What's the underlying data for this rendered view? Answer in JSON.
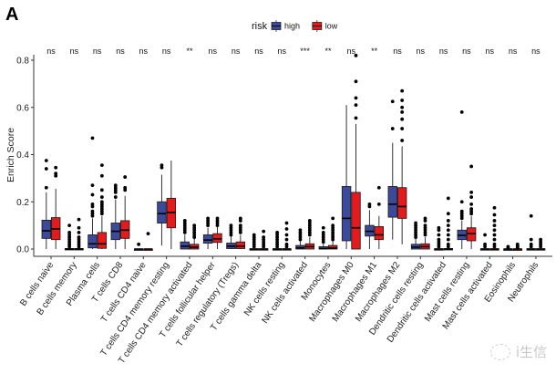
{
  "panel_label": "A",
  "watermark": "i生信",
  "chart_data": {
    "type": "boxplot",
    "title": "",
    "xlabel": "",
    "ylabel": "Enrich Score",
    "ylim": [
      -0.03,
      0.86
    ],
    "yticks": [
      0.0,
      0.2,
      0.4,
      0.6,
      0.8
    ],
    "ytick_labels": [
      "0.0",
      "0.2",
      "0.4",
      "0.6",
      "0.8"
    ],
    "grid": false,
    "legend": {
      "title": "risk",
      "placement": "top-center",
      "entries": [
        {
          "name": "high",
          "color": "#3B4A9A"
        },
        {
          "name": "low",
          "color": "#E41A1C"
        }
      ]
    },
    "categories": [
      "B cells naive",
      "B cells memory",
      "Plasma cells",
      "T cells CD8",
      "T cells CD4 naive",
      "T cells CD4 memory resting",
      "T cells CD4 memory activated",
      "T cells follicular helper",
      "T cells regulatory (Tregs)",
      "T cells gamma delta",
      "NK cells resting",
      "NK cells activated",
      "Monocytes",
      "Macrophages M0",
      "Macrophages M1",
      "Macrophages M2",
      "Dendritic cells resting",
      "Dendritic cells activated",
      "Mast cells resting",
      "Mast cells activated",
      "Eosinophils",
      "Neutrophils"
    ],
    "significance": [
      "ns",
      "ns",
      "ns",
      "ns",
      "ns",
      "ns",
      "**",
      "ns",
      "ns",
      "ns",
      "ns",
      "***",
      "**",
      "ns",
      "**",
      "ns",
      "ns",
      "ns",
      "ns",
      "ns",
      "ns",
      "ns"
    ],
    "series": [
      {
        "name": "high",
        "boxes": [
          {
            "q1": 0.045,
            "median": 0.077,
            "q3": 0.122,
            "wlo": 0.0,
            "whi": 0.24,
            "outliers": [
              0.26,
              0.34,
              0.375
            ]
          },
          {
            "q1": 0.0,
            "median": 0.0,
            "q3": 0.002,
            "wlo": 0.0,
            "whi": 0.004,
            "outliers": [
              0.01,
              0.02,
              0.03,
              0.04,
              0.05,
              0.06,
              0.07,
              0.1
            ]
          },
          {
            "q1": 0.005,
            "median": 0.022,
            "q3": 0.06,
            "wlo": 0.0,
            "whi": 0.13,
            "outliers": [
              0.14,
              0.15,
              0.16,
              0.18,
              0.19,
              0.23,
              0.27,
              0.47
            ]
          },
          {
            "q1": 0.04,
            "median": 0.075,
            "q3": 0.11,
            "wlo": 0.0,
            "whi": 0.21,
            "outliers": [
              0.22,
              0.24,
              0.25,
              0.26,
              0.27
            ]
          },
          {
            "q1": 0.0,
            "median": 0.0,
            "q3": 0.0,
            "wlo": 0.0,
            "whi": 0.0,
            "outliers": [
              0.02
            ]
          },
          {
            "q1": 0.11,
            "median": 0.15,
            "q3": 0.2,
            "wlo": 0.015,
            "whi": 0.315,
            "outliers": [
              0.345,
              0.355
            ]
          },
          {
            "q1": 0.0,
            "median": 0.012,
            "q3": 0.03,
            "wlo": 0.0,
            "whi": 0.06,
            "outliers": [
              0.07,
              0.08,
              0.09,
              0.1,
              0.11,
              0.12
            ]
          },
          {
            "q1": 0.025,
            "median": 0.038,
            "q3": 0.06,
            "wlo": 0.0,
            "whi": 0.09,
            "outliers": [
              0.1,
              0.11,
              0.12,
              0.13
            ]
          },
          {
            "q1": 0.002,
            "median": 0.012,
            "q3": 0.025,
            "wlo": 0.0,
            "whi": 0.055,
            "outliers": [
              0.06,
              0.07,
              0.08,
              0.09,
              0.1
            ]
          },
          {
            "q1": 0.0,
            "median": 0.0,
            "q3": 0.001,
            "wlo": 0.0,
            "whi": 0.002,
            "outliers": [
              0.01,
              0.02,
              0.03,
              0.04,
              0.05,
              0.06
            ]
          },
          {
            "q1": 0.0,
            "median": 0.0,
            "q3": 0.001,
            "wlo": 0.0,
            "whi": 0.002,
            "outliers": [
              0.01,
              0.02,
              0.03,
              0.04,
              0.05,
              0.06,
              0.07
            ]
          },
          {
            "q1": 0.0,
            "median": 0.005,
            "q3": 0.015,
            "wlo": 0.0,
            "whi": 0.035,
            "outliers": [
              0.04,
              0.05,
              0.06,
              0.07,
              0.08
            ]
          },
          {
            "q1": 0.0,
            "median": 0.002,
            "q3": 0.01,
            "wlo": 0.0,
            "whi": 0.025,
            "outliers": [
              0.03,
              0.04,
              0.05,
              0.06,
              0.07,
              0.09
            ]
          },
          {
            "q1": 0.035,
            "median": 0.13,
            "q3": 0.265,
            "wlo": 0.0,
            "whi": 0.61,
            "outliers": []
          },
          {
            "q1": 0.055,
            "median": 0.075,
            "q3": 0.1,
            "wlo": 0.0,
            "whi": 0.165,
            "outliers": [
              0.18,
              0.19
            ]
          },
          {
            "q1": 0.135,
            "median": 0.19,
            "q3": 0.265,
            "wlo": 0.04,
            "whi": 0.45,
            "outliers": [
              0.51,
              0.625
            ]
          },
          {
            "q1": 0.0,
            "median": 0.008,
            "q3": 0.02,
            "wlo": 0.0,
            "whi": 0.045,
            "outliers": [
              0.05,
              0.06,
              0.07,
              0.08,
              0.09,
              0.1,
              0.11
            ]
          },
          {
            "q1": 0.0,
            "median": 0.0,
            "q3": 0.001,
            "wlo": 0.0,
            "whi": 0.002,
            "outliers": [
              0.01,
              0.02,
              0.03,
              0.04,
              0.06,
              0.08,
              0.09
            ]
          },
          {
            "q1": 0.04,
            "median": 0.058,
            "q3": 0.08,
            "wlo": 0.0,
            "whi": 0.12,
            "outliers": [
              0.13,
              0.14,
              0.15,
              0.16,
              0.2,
              0.58
            ]
          },
          {
            "q1": 0.0,
            "median": 0.0,
            "q3": 0.001,
            "wlo": 0.0,
            "whi": 0.002,
            "outliers": [
              0.01,
              0.02,
              0.06
            ]
          },
          {
            "q1": 0.0,
            "median": 0.0,
            "q3": 0.0,
            "wlo": 0.0,
            "whi": 0.001,
            "outliers": [
              0.005,
              0.01
            ]
          },
          {
            "q1": 0.0,
            "median": 0.0,
            "q3": 0.001,
            "wlo": 0.0,
            "whi": 0.002,
            "outliers": [
              0.01,
              0.02,
              0.04,
              0.14
            ]
          }
        ]
      },
      {
        "name": "low",
        "boxes": [
          {
            "q1": 0.04,
            "median": 0.085,
            "q3": 0.133,
            "wlo": 0.0,
            "whi": 0.255,
            "outliers": [
              0.31,
              0.32,
              0.345
            ]
          },
          {
            "q1": 0.0,
            "median": 0.0,
            "q3": 0.002,
            "wlo": 0.0,
            "whi": 0.004,
            "outliers": [
              0.01,
              0.02,
              0.03,
              0.04,
              0.05,
              0.07,
              0.09,
              0.125
            ]
          },
          {
            "q1": 0.003,
            "median": 0.022,
            "q3": 0.07,
            "wlo": 0.0,
            "whi": 0.14,
            "outliers": [
              0.15,
              0.16,
              0.17,
              0.18,
              0.19,
              0.2,
              0.22,
              0.25,
              0.31,
              0.355
            ]
          },
          {
            "q1": 0.045,
            "median": 0.08,
            "q3": 0.12,
            "wlo": 0.0,
            "whi": 0.225,
            "outliers": [
              0.25,
              0.26,
              0.305
            ]
          },
          {
            "q1": 0.0,
            "median": 0.0,
            "q3": 0.0,
            "wlo": 0.0,
            "whi": 0.0,
            "outliers": [
              0.065
            ]
          },
          {
            "q1": 0.09,
            "median": 0.155,
            "q3": 0.215,
            "wlo": 0.0,
            "whi": 0.375,
            "outliers": []
          },
          {
            "q1": 0.0,
            "median": 0.008,
            "q3": 0.02,
            "wlo": 0.0,
            "whi": 0.045,
            "outliers": [
              0.05,
              0.06,
              0.07,
              0.08,
              0.09,
              0.1
            ]
          },
          {
            "q1": 0.028,
            "median": 0.043,
            "q3": 0.065,
            "wlo": 0.0,
            "whi": 0.095,
            "outliers": [
              0.1,
              0.11,
              0.12,
              0.13
            ]
          },
          {
            "q1": 0.002,
            "median": 0.012,
            "q3": 0.03,
            "wlo": 0.0,
            "whi": 0.06,
            "outliers": [
              0.07,
              0.08,
              0.09,
              0.1,
              0.12,
              0.13
            ]
          },
          {
            "q1": 0.0,
            "median": 0.0,
            "q3": 0.001,
            "wlo": 0.0,
            "whi": 0.002,
            "outliers": [
              0.01,
              0.02,
              0.03,
              0.04,
              0.05,
              0.075
            ]
          },
          {
            "q1": 0.0,
            "median": 0.0,
            "q3": 0.001,
            "wlo": 0.0,
            "whi": 0.002,
            "outliers": [
              0.01,
              0.02,
              0.04,
              0.06,
              0.085,
              0.11
            ]
          },
          {
            "q1": 0.0,
            "median": 0.01,
            "q3": 0.022,
            "wlo": 0.0,
            "whi": 0.05,
            "outliers": [
              0.06,
              0.07,
              0.08,
              0.09,
              0.1,
              0.11,
              0.12
            ]
          },
          {
            "q1": 0.0,
            "median": 0.004,
            "q3": 0.015,
            "wlo": 0.0,
            "whi": 0.035,
            "outliers": [
              0.04,
              0.05,
              0.06,
              0.07,
              0.08,
              0.09,
              0.1,
              0.13
            ]
          },
          {
            "q1": 0.0,
            "median": 0.09,
            "q3": 0.24,
            "wlo": 0.0,
            "whi": 0.53,
            "outliers": [
              0.555,
              0.61,
              0.64,
              0.71,
              0.82
            ]
          },
          {
            "q1": 0.04,
            "median": 0.06,
            "q3": 0.095,
            "wlo": 0.0,
            "whi": 0.14,
            "outliers": [
              0.19,
              0.26
            ]
          },
          {
            "q1": 0.13,
            "median": 0.18,
            "q3": 0.26,
            "wlo": 0.02,
            "whi": 0.435,
            "outliers": [
              0.46,
              0.51,
              0.55,
              0.58,
              0.6,
              0.63,
              0.67
            ]
          },
          {
            "q1": 0.0,
            "median": 0.01,
            "q3": 0.022,
            "wlo": 0.0,
            "whi": 0.05,
            "outliers": [
              0.06,
              0.07,
              0.08,
              0.09,
              0.1,
              0.12,
              0.13
            ]
          },
          {
            "q1": 0.0,
            "median": 0.0,
            "q3": 0.002,
            "wlo": 0.0,
            "whi": 0.004,
            "outliers": [
              0.01,
              0.02,
              0.04,
              0.06,
              0.08,
              0.1,
              0.12,
              0.15,
              0.215
            ]
          },
          {
            "q1": 0.035,
            "median": 0.065,
            "q3": 0.09,
            "wlo": 0.0,
            "whi": 0.14,
            "outliers": [
              0.15,
              0.16,
              0.17,
              0.19,
              0.22,
              0.24,
              0.35
            ]
          },
          {
            "q1": 0.0,
            "median": 0.0,
            "q3": 0.001,
            "wlo": 0.0,
            "whi": 0.002,
            "outliers": [
              0.01,
              0.02,
              0.04,
              0.06,
              0.08,
              0.1,
              0.12,
              0.145,
              0.175
            ]
          },
          {
            "q1": 0.0,
            "median": 0.0,
            "q3": 0.0,
            "wlo": 0.0,
            "whi": 0.001,
            "outliers": [
              0.005,
              0.01,
              0.015,
              0.02
            ]
          },
          {
            "q1": 0.0,
            "median": 0.0,
            "q3": 0.001,
            "wlo": 0.0,
            "whi": 0.002,
            "outliers": [
              0.01,
              0.02,
              0.03,
              0.04
            ]
          }
        ]
      }
    ]
  }
}
